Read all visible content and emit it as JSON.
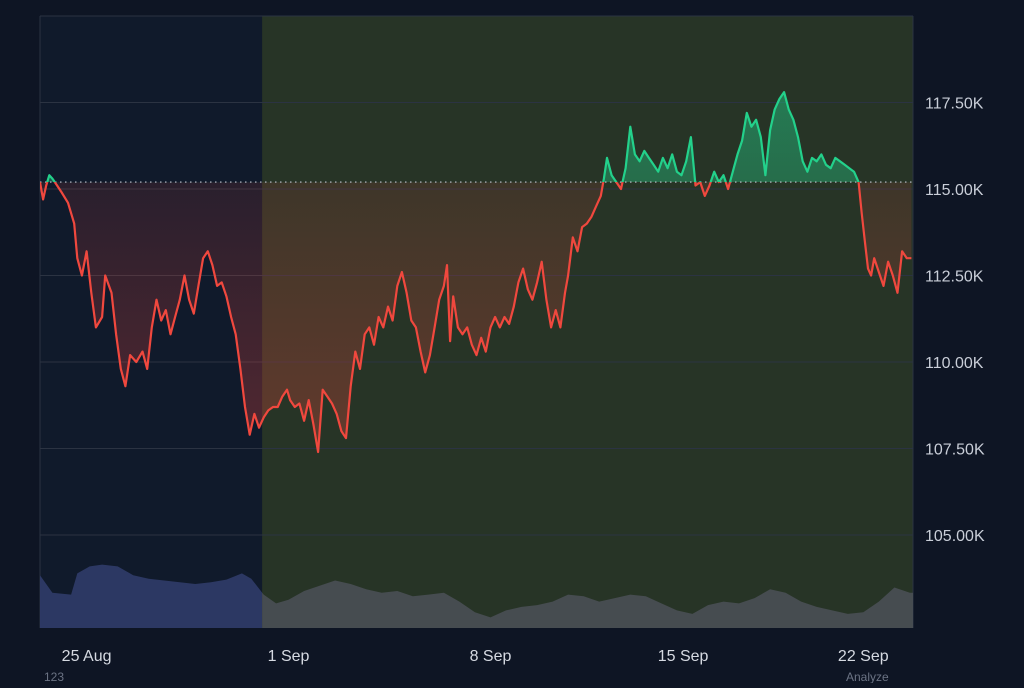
{
  "chart_data": {
    "type": "area",
    "title": "",
    "xlabel": "",
    "ylabel": "",
    "baseline": 115200,
    "ylim": [
      102000,
      119500
    ],
    "yticks": [
      105000,
      107500,
      110000,
      112500,
      115000,
      117500
    ],
    "ytick_labels": [
      "105.00K",
      "107.50K",
      "110.00K",
      "112.50K",
      "115.00K",
      "117.50K"
    ],
    "xlim": [
      0,
      28.1
    ],
    "xticks": [
      {
        "day": 1.5,
        "label": "25 Aug"
      },
      {
        "day": 8.0,
        "label": "1 Sep"
      },
      {
        "day": 14.5,
        "label": "8 Sep"
      },
      {
        "day": 20.7,
        "label": "15 Sep"
      },
      {
        "day": 26.5,
        "label": "22 Sep"
      }
    ],
    "highlight_range": {
      "start_day": 7.15,
      "end_day": 28.1
    },
    "grid": true,
    "legend": "none",
    "colors": {
      "down": "#f0483e",
      "up": "#23d18b",
      "volume_left": "#2e3a66",
      "volume_right": "#4a4f55",
      "highlight": "#3a4a22",
      "baseline": "#bfc6d2"
    },
    "series": [
      {
        "values": [
          [
            0.0,
            115200
          ],
          [
            0.1,
            114700
          ],
          [
            0.2,
            115100
          ],
          [
            0.3,
            115400
          ],
          [
            0.4,
            115300
          ],
          [
            0.55,
            115100
          ],
          [
            0.7,
            114900
          ],
          [
            0.9,
            114600
          ],
          [
            1.1,
            114000
          ],
          [
            1.2,
            113000
          ],
          [
            1.35,
            112500
          ],
          [
            1.5,
            113200
          ],
          [
            1.65,
            112000
          ],
          [
            1.8,
            111000
          ],
          [
            2.0,
            111300
          ],
          [
            2.1,
            112500
          ],
          [
            2.3,
            112000
          ],
          [
            2.45,
            110800
          ],
          [
            2.6,
            109800
          ],
          [
            2.75,
            109300
          ],
          [
            2.9,
            110200
          ],
          [
            3.1,
            110000
          ],
          [
            3.3,
            110300
          ],
          [
            3.45,
            109800
          ],
          [
            3.6,
            111000
          ],
          [
            3.75,
            111800
          ],
          [
            3.9,
            111200
          ],
          [
            4.05,
            111500
          ],
          [
            4.2,
            110800
          ],
          [
            4.35,
            111300
          ],
          [
            4.5,
            111800
          ],
          [
            4.65,
            112500
          ],
          [
            4.8,
            111800
          ],
          [
            4.95,
            111400
          ],
          [
            5.1,
            112200
          ],
          [
            5.25,
            113000
          ],
          [
            5.4,
            113200
          ],
          [
            5.55,
            112800
          ],
          [
            5.7,
            112200
          ],
          [
            5.85,
            112300
          ],
          [
            6.0,
            111900
          ],
          [
            6.15,
            111300
          ],
          [
            6.3,
            110800
          ],
          [
            6.45,
            109800
          ],
          [
            6.6,
            108700
          ],
          [
            6.75,
            107900
          ],
          [
            6.9,
            108500
          ],
          [
            7.05,
            108100
          ],
          [
            7.2,
            108400
          ],
          [
            7.35,
            108600
          ],
          [
            7.5,
            108700
          ],
          [
            7.65,
            108700
          ],
          [
            7.8,
            109000
          ],
          [
            7.95,
            109200
          ],
          [
            8.05,
            108900
          ],
          [
            8.2,
            108700
          ],
          [
            8.35,
            108800
          ],
          [
            8.5,
            108300
          ],
          [
            8.65,
            108900
          ],
          [
            8.8,
            108200
          ],
          [
            8.95,
            107400
          ],
          [
            9.1,
            109200
          ],
          [
            9.25,
            109000
          ],
          [
            9.4,
            108800
          ],
          [
            9.55,
            108500
          ],
          [
            9.7,
            108000
          ],
          [
            9.85,
            107800
          ],
          [
            10.0,
            109300
          ],
          [
            10.15,
            110300
          ],
          [
            10.3,
            109800
          ],
          [
            10.45,
            110800
          ],
          [
            10.6,
            111000
          ],
          [
            10.75,
            110500
          ],
          [
            10.9,
            111300
          ],
          [
            11.05,
            111000
          ],
          [
            11.2,
            111600
          ],
          [
            11.35,
            111200
          ],
          [
            11.5,
            112200
          ],
          [
            11.65,
            112600
          ],
          [
            11.8,
            112000
          ],
          [
            11.95,
            111200
          ],
          [
            12.1,
            111000
          ],
          [
            12.25,
            110300
          ],
          [
            12.4,
            109700
          ],
          [
            12.55,
            110200
          ],
          [
            12.7,
            111000
          ],
          [
            12.85,
            111800
          ],
          [
            13.0,
            112200
          ],
          [
            13.1,
            112800
          ],
          [
            13.2,
            110600
          ],
          [
            13.3,
            111900
          ],
          [
            13.45,
            111000
          ],
          [
            13.6,
            110800
          ],
          [
            13.75,
            111000
          ],
          [
            13.9,
            110500
          ],
          [
            14.05,
            110200
          ],
          [
            14.2,
            110700
          ],
          [
            14.35,
            110300
          ],
          [
            14.5,
            111000
          ],
          [
            14.65,
            111300
          ],
          [
            14.8,
            111000
          ],
          [
            14.95,
            111300
          ],
          [
            15.1,
            111100
          ],
          [
            15.25,
            111600
          ],
          [
            15.4,
            112300
          ],
          [
            15.55,
            112700
          ],
          [
            15.7,
            112100
          ],
          [
            15.85,
            111800
          ],
          [
            16.0,
            112300
          ],
          [
            16.15,
            112900
          ],
          [
            16.3,
            111800
          ],
          [
            16.45,
            111000
          ],
          [
            16.6,
            111500
          ],
          [
            16.75,
            111000
          ],
          [
            16.9,
            112000
          ],
          [
            17.0,
            112500
          ],
          [
            17.15,
            113600
          ],
          [
            17.3,
            113200
          ],
          [
            17.45,
            113900
          ],
          [
            17.6,
            114000
          ],
          [
            17.75,
            114200
          ],
          [
            17.9,
            114500
          ],
          [
            18.05,
            114800
          ],
          [
            18.15,
            115300
          ],
          [
            18.25,
            115900
          ],
          [
            18.4,
            115400
          ],
          [
            18.55,
            115200
          ],
          [
            18.7,
            115000
          ],
          [
            18.85,
            115600
          ],
          [
            19.0,
            116800
          ],
          [
            19.15,
            116000
          ],
          [
            19.3,
            115800
          ],
          [
            19.45,
            116100
          ],
          [
            19.6,
            115900
          ],
          [
            19.75,
            115700
          ],
          [
            19.9,
            115500
          ],
          [
            20.05,
            115900
          ],
          [
            20.2,
            115600
          ],
          [
            20.35,
            116000
          ],
          [
            20.5,
            115500
          ],
          [
            20.65,
            115400
          ],
          [
            20.8,
            115800
          ],
          [
            20.95,
            116500
          ],
          [
            21.1,
            115100
          ],
          [
            21.25,
            115200
          ],
          [
            21.4,
            114800
          ],
          [
            21.55,
            115100
          ],
          [
            21.7,
            115500
          ],
          [
            21.85,
            115200
          ],
          [
            22.0,
            115400
          ],
          [
            22.15,
            115000
          ],
          [
            22.3,
            115500
          ],
          [
            22.45,
            116000
          ],
          [
            22.6,
            116400
          ],
          [
            22.75,
            117200
          ],
          [
            22.9,
            116800
          ],
          [
            23.05,
            117000
          ],
          [
            23.2,
            116500
          ],
          [
            23.35,
            115400
          ],
          [
            23.5,
            116700
          ],
          [
            23.65,
            117300
          ],
          [
            23.8,
            117600
          ],
          [
            23.95,
            117800
          ],
          [
            24.1,
            117300
          ],
          [
            24.25,
            117000
          ],
          [
            24.4,
            116500
          ],
          [
            24.55,
            115800
          ],
          [
            24.7,
            115500
          ],
          [
            24.85,
            115900
          ],
          [
            25.0,
            115800
          ],
          [
            25.15,
            116000
          ],
          [
            25.3,
            115700
          ],
          [
            25.45,
            115600
          ],
          [
            25.6,
            115900
          ],
          [
            25.75,
            115800
          ],
          [
            25.9,
            115700
          ],
          [
            26.05,
            115600
          ],
          [
            26.2,
            115500
          ],
          [
            26.35,
            115200
          ],
          [
            26.45,
            114300
          ],
          [
            26.55,
            113500
          ],
          [
            26.65,
            112700
          ],
          [
            26.75,
            112500
          ],
          [
            26.85,
            113000
          ],
          [
            27.0,
            112600
          ],
          [
            27.15,
            112200
          ],
          [
            27.3,
            112900
          ],
          [
            27.45,
            112500
          ],
          [
            27.6,
            112000
          ],
          [
            27.75,
            113200
          ],
          [
            27.9,
            113000
          ],
          [
            28.05,
            113000
          ]
        ]
      }
    ],
    "volume": [
      [
        0.0,
        0.6
      ],
      [
        0.4,
        0.4
      ],
      [
        1.0,
        0.38
      ],
      [
        1.2,
        0.62
      ],
      [
        1.6,
        0.7
      ],
      [
        2.0,
        0.72
      ],
      [
        2.5,
        0.7
      ],
      [
        3.0,
        0.6
      ],
      [
        3.5,
        0.56
      ],
      [
        4.5,
        0.52
      ],
      [
        5.0,
        0.5
      ],
      [
        5.5,
        0.52
      ],
      [
        6.0,
        0.55
      ],
      [
        6.5,
        0.62
      ],
      [
        6.8,
        0.56
      ],
      [
        7.2,
        0.38
      ],
      [
        7.6,
        0.28
      ],
      [
        8.0,
        0.32
      ],
      [
        8.5,
        0.42
      ],
      [
        9.0,
        0.48
      ],
      [
        9.5,
        0.54
      ],
      [
        10.0,
        0.5
      ],
      [
        10.5,
        0.44
      ],
      [
        11.0,
        0.4
      ],
      [
        11.5,
        0.42
      ],
      [
        12.0,
        0.36
      ],
      [
        12.5,
        0.38
      ],
      [
        13.0,
        0.4
      ],
      [
        13.5,
        0.3
      ],
      [
        14.0,
        0.18
      ],
      [
        14.5,
        0.12
      ],
      [
        15.0,
        0.2
      ],
      [
        15.5,
        0.24
      ],
      [
        16.0,
        0.26
      ],
      [
        16.5,
        0.3
      ],
      [
        17.0,
        0.38
      ],
      [
        17.5,
        0.36
      ],
      [
        18.0,
        0.3
      ],
      [
        18.5,
        0.34
      ],
      [
        19.0,
        0.38
      ],
      [
        19.5,
        0.36
      ],
      [
        20.0,
        0.28
      ],
      [
        20.5,
        0.2
      ],
      [
        21.0,
        0.16
      ],
      [
        21.5,
        0.26
      ],
      [
        22.0,
        0.3
      ],
      [
        22.5,
        0.28
      ],
      [
        23.0,
        0.34
      ],
      [
        23.5,
        0.44
      ],
      [
        24.0,
        0.4
      ],
      [
        24.5,
        0.3
      ],
      [
        25.0,
        0.24
      ],
      [
        25.5,
        0.2
      ],
      [
        26.0,
        0.16
      ],
      [
        26.5,
        0.18
      ],
      [
        27.0,
        0.3
      ],
      [
        27.5,
        0.46
      ],
      [
        28.0,
        0.4
      ],
      [
        28.1,
        0.4
      ]
    ],
    "footnotes": {
      "left": "123",
      "right": "Analyze"
    }
  }
}
